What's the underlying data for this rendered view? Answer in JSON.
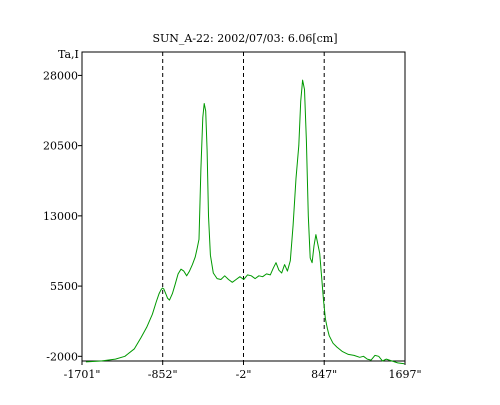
{
  "chart_data": {
    "type": "line",
    "title": "SUN_A-22: 2002/07/03: 6.06[cm]",
    "ylabel": "Ta,I",
    "xlabel": "",
    "xlim": [
      -1701,
      1697
    ],
    "ylim": [
      -2500,
      30500
    ],
    "grid": false,
    "x_ticks": [
      {
        "value": -1701,
        "label": "-1701\""
      },
      {
        "value": -852,
        "label": "-852\""
      },
      {
        "value": -2,
        "label": "-2\""
      },
      {
        "value": 847,
        "label": "847\""
      },
      {
        "value": 1697,
        "label": "1697\""
      }
    ],
    "y_ticks": [
      {
        "value": -2000,
        "label": "-2000"
      },
      {
        "value": 5500,
        "label": "5500"
      },
      {
        "value": 13000,
        "label": "13000"
      },
      {
        "value": 20500,
        "label": "20500"
      },
      {
        "value": 28000,
        "label": "28000"
      }
    ],
    "vlines": [
      -852,
      -2,
      847
    ],
    "series": [
      {
        "color": "#009900",
        "x": [
          -1660,
          -1500,
          -1350,
          -1250,
          -1150,
          -1080,
          -1020,
          -960,
          -920,
          -890,
          -870,
          -855,
          -840,
          -820,
          -800,
          -780,
          -750,
          -720,
          -690,
          -660,
          -630,
          -600,
          -570,
          -540,
          -510,
          -490,
          -470,
          -450,
          -430,
          -415,
          -400,
          -385,
          -370,
          -350,
          -320,
          -280,
          -240,
          -200,
          -160,
          -120,
          -80,
          -40,
          0,
          40,
          80,
          120,
          160,
          200,
          240,
          280,
          310,
          340,
          370,
          400,
          430,
          460,
          490,
          520,
          550,
          580,
          600,
          620,
          640,
          660,
          680,
          700,
          720,
          740,
          760,
          780,
          800,
          820,
          840,
          860,
          880,
          900,
          940,
          980,
          1040,
          1100,
          1160,
          1220,
          1260,
          1300,
          1340,
          1380,
          1420,
          1460,
          1500,
          1560,
          1620,
          1690
        ],
        "y": [
          -2600,
          -2500,
          -2300,
          -2000,
          -1200,
          0,
          1100,
          2500,
          3800,
          4700,
          5100,
          5300,
          5200,
          4700,
          4200,
          4000,
          4700,
          5700,
          6800,
          7300,
          7100,
          6600,
          7100,
          7800,
          8600,
          9500,
          10500,
          18000,
          23500,
          25000,
          24200,
          20000,
          13000,
          8800,
          6900,
          6300,
          6200,
          6600,
          6200,
          5900,
          6200,
          6500,
          6200,
          6700,
          6600,
          6300,
          6600,
          6500,
          6800,
          6700,
          7400,
          8000,
          7200,
          6900,
          7800,
          7100,
          8200,
          12000,
          17000,
          20500,
          25200,
          27500,
          26500,
          21000,
          13000,
          8500,
          8000,
          9800,
          11000,
          10000,
          9000,
          6500,
          4000,
          2000,
          1000,
          200,
          -600,
          -1000,
          -1500,
          -1800,
          -1900,
          -2100,
          -2000,
          -2300,
          -2400,
          -1900,
          -2000,
          -2500,
          -2300,
          -2500,
          -2700,
          -2800
        ]
      }
    ]
  }
}
